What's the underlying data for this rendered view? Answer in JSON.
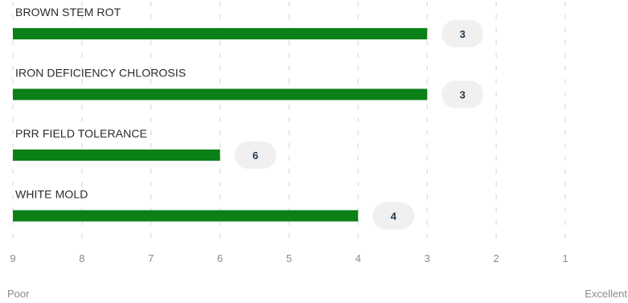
{
  "chart_data": {
    "type": "bar",
    "orientation": "horizontal",
    "categories": [
      "BROWN STEM ROT",
      "IRON DEFICIENCY CHLOROSIS",
      "PRR FIELD TOLERANCE",
      "WHITE MOLD"
    ],
    "values": [
      3,
      3,
      6,
      4
    ],
    "value_labels": [
      "3",
      "3",
      "6",
      "4"
    ],
    "x_ticks": [
      9,
      8,
      7,
      6,
      5,
      4,
      3,
      2,
      1
    ],
    "x_tick_labels": [
      "9",
      "8",
      "7",
      "6",
      "5",
      "4",
      "3",
      "2",
      "1"
    ],
    "xlim": [
      9,
      1
    ],
    "x_axis_reversed": true,
    "x_min_label": "Poor",
    "x_max_label": "Excellent",
    "grid": true,
    "grid_style": "dashed vertical",
    "bar_color": "#0a8017",
    "pill_color": "#f0f0f0",
    "pill_text_color": "#243a4f"
  }
}
